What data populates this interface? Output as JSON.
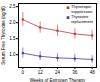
{
  "chart_data": {
    "type": "line",
    "xlabel": "Weeks of Estrogen Therapy",
    "ylabel": "Serum Free Thyroxine (ng/dl)",
    "x": [
      0,
      12,
      24,
      36,
      48
    ],
    "series": [
      {
        "name": "Thyrotropin\nsuppression",
        "color": "#cc3333",
        "values": [
          2.1,
          1.85,
          1.75,
          1.65,
          1.6
        ],
        "errors": [
          0.22,
          0.18,
          0.18,
          0.16,
          0.16
        ]
      },
      {
        "name": "Thyroxine\nreplacement",
        "color": "#5533aa",
        "values": [
          1.05,
          0.95,
          0.9,
          0.88,
          0.85
        ],
        "errors": [
          0.16,
          0.14,
          0.13,
          0.12,
          0.12
        ]
      }
    ],
    "marker": "square",
    "xlim": [
      -3,
      51
    ],
    "ylim": [
      0.6,
      2.6
    ],
    "xticks": [
      0,
      12,
      24,
      36,
      48
    ],
    "yticks": [
      {
        "value": 1,
        "label": "1.0"
      },
      1.5,
      {
        "value": 2,
        "label": "2.0"
      },
      2.5
    ],
    "grid": false,
    "legend": "upper right"
  }
}
